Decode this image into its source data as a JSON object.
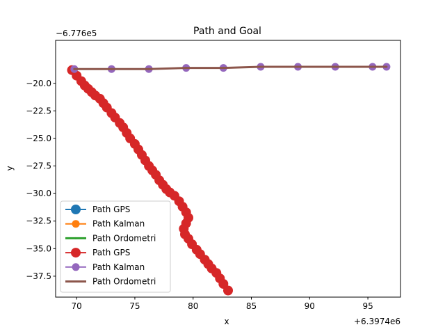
{
  "chart_data": {
    "type": "line",
    "title": "Path and Goal",
    "xlabel": "x",
    "ylabel": "y",
    "x_offset_label": "+6.3974e6",
    "y_offset_label": "−6.776e5",
    "xlim": [
      68.2,
      97.8
    ],
    "ylim": [
      -39.4,
      -16.1
    ],
    "xticks": [
      70,
      75,
      80,
      85,
      90,
      95
    ],
    "xtick_labels": [
      "70",
      "75",
      "80",
      "85",
      "90",
      "95"
    ],
    "yticks": [
      -20.0,
      -22.5,
      -25.0,
      -27.5,
      -30.0,
      -32.5,
      -35.0,
      -37.5
    ],
    "ytick_labels": [
      "−20.0",
      "−22.5",
      "−25.0",
      "−27.5",
      "−30.0",
      "−32.5",
      "−35.0",
      "−37.5"
    ],
    "grid": false,
    "legend_position": "lower-left",
    "series": [
      {
        "name": "Path GPS",
        "color": "#1f77b4",
        "style": "big-marker",
        "x": [],
        "y": []
      },
      {
        "name": "Path Kalman",
        "color": "#ff7f0e",
        "style": "medium-marker",
        "x": [],
        "y": []
      },
      {
        "name": "Path Ordometri",
        "color": "#2ca02c",
        "style": "small-marker",
        "x": [],
        "y": []
      },
      {
        "name": "Path GPS",
        "color": "#d62728",
        "style": "big-marker",
        "x": [
          69.6,
          70.0,
          70.4,
          70.7,
          71.0,
          71.3,
          71.6,
          72.0,
          72.3,
          72.6,
          73.0,
          73.3,
          73.7,
          74.0,
          74.3,
          74.6,
          75.0,
          75.3,
          75.6,
          75.9,
          76.2,
          76.5,
          76.8,
          77.1,
          77.4,
          77.7,
          78.0,
          78.4,
          78.8,
          79.1,
          79.4,
          79.6,
          79.4,
          79.2,
          79.3,
          79.6,
          79.9,
          80.3,
          80.6,
          81.0,
          81.3,
          81.6,
          82.0,
          82.3,
          82.6,
          83.0
        ],
        "y": [
          -18.8,
          -19.3,
          -19.8,
          -20.2,
          -20.5,
          -20.8,
          -21.1,
          -21.4,
          -21.8,
          -22.2,
          -22.7,
          -23.1,
          -23.6,
          -24.0,
          -24.5,
          -25.0,
          -25.5,
          -26.0,
          -26.5,
          -27.0,
          -27.5,
          -27.9,
          -28.3,
          -28.8,
          -29.2,
          -29.6,
          -29.9,
          -30.2,
          -30.7,
          -31.2,
          -31.7,
          -32.2,
          -32.7,
          -33.2,
          -33.7,
          -34.1,
          -34.6,
          -35.1,
          -35.5,
          -36.0,
          -36.4,
          -36.8,
          -37.2,
          -37.7,
          -38.2,
          -38.8
        ]
      },
      {
        "name": "Path Kalman",
        "color": "#9467bd",
        "style": "medium-marker",
        "x": [
          69.8,
          73.0,
          76.2,
          79.4,
          82.6,
          85.8,
          89.0,
          92.2,
          95.4,
          96.6
        ],
        "y": [
          -18.7,
          -18.7,
          -18.7,
          -18.6,
          -18.6,
          -18.5,
          -18.5,
          -18.5,
          -18.5,
          -18.5
        ]
      },
      {
        "name": "Path Ordometri",
        "color": "#8c564b",
        "style": "small-marker",
        "x": [
          69.8,
          73.0,
          76.2,
          79.4,
          82.6,
          85.8,
          89.0,
          92.2,
          95.4,
          96.6
        ],
        "y": [
          -18.7,
          -18.7,
          -18.7,
          -18.6,
          -18.6,
          -18.5,
          -18.5,
          -18.5,
          -18.5,
          -18.5
        ]
      }
    ]
  }
}
